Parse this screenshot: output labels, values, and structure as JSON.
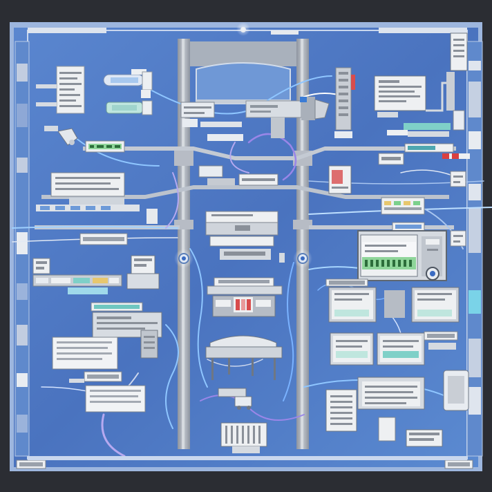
{
  "colors": {
    "background": "#2b2d33",
    "board_blue": "#4a76c2",
    "board_blue_light": "#6f97d6",
    "frame_light": "#bcd0ec",
    "spine_gray": "#a9afb9",
    "panel_white": "#eef0f2",
    "panel_gray": "#c6c9ce",
    "wire_blue": "#8fc6ff",
    "wire_violet": "#9a86e8",
    "teal": "#6fc7c0",
    "green": "#7bd08c",
    "red": "#d94040"
  },
  "icons": {
    "central_device": "projector-icon",
    "left_device": "printer-icon",
    "lower_device": "table-icon",
    "server": "server-rack-icon"
  }
}
